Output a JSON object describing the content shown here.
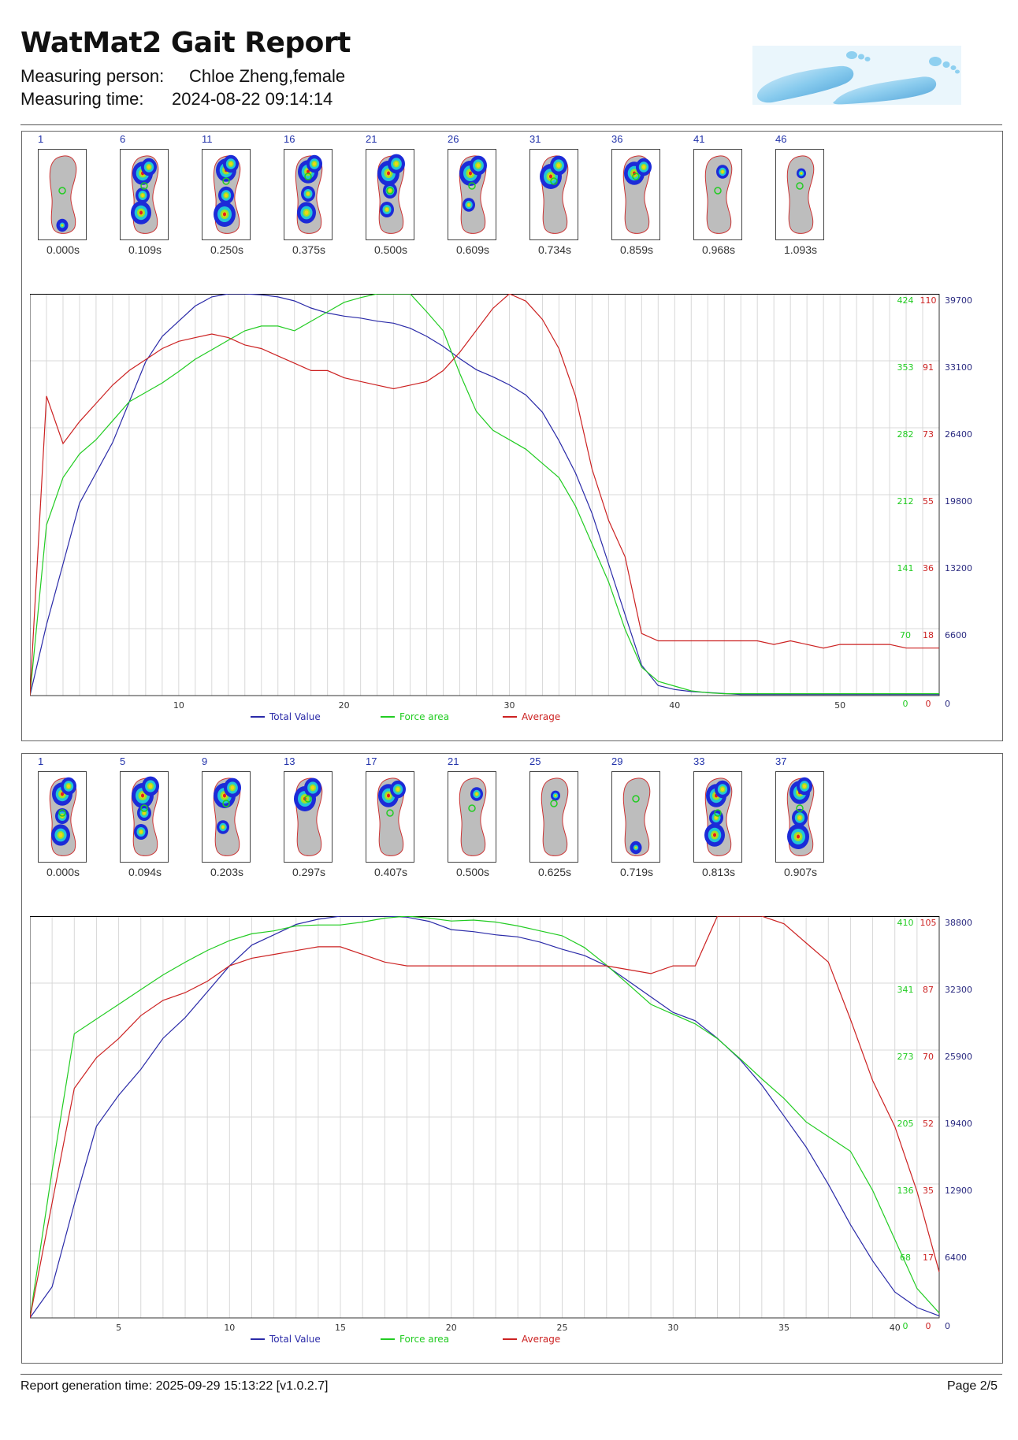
{
  "report": {
    "title": "WatMat2 Gait Report",
    "person_label": "Measuring person:",
    "person_value": "Chloe Zheng,female",
    "time_label": "Measuring time:",
    "time_value": "2024-08-22 09:14:14"
  },
  "footer": {
    "generation": "Report generation time: 2025-09-29 15:13:22 [v1.0.2.7]",
    "page": "Page 2/5"
  },
  "colors": {
    "total_value": "#2a2aa8",
    "force_area": "#22cc22",
    "average": "#cc2222",
    "grid": "#d8d8d8"
  },
  "panels": [
    {
      "frames": [
        {
          "num": "1",
          "time": "0.000s"
        },
        {
          "num": "6",
          "time": "0.109s"
        },
        {
          "num": "11",
          "time": "0.250s"
        },
        {
          "num": "16",
          "time": "0.375s"
        },
        {
          "num": "21",
          "time": "0.500s"
        },
        {
          "num": "26",
          "time": "0.609s"
        },
        {
          "num": "31",
          "time": "0.734s"
        },
        {
          "num": "36",
          "time": "0.859s"
        },
        {
          "num": "41",
          "time": "0.968s"
        },
        {
          "num": "46",
          "time": "1.093s"
        }
      ],
      "chart_data": {
        "type": "line",
        "x_ticks": [
          "10",
          "20",
          "30",
          "40",
          "50"
        ],
        "x_tick_values": [
          10,
          20,
          30,
          40,
          50
        ],
        "xlim": [
          1,
          56
        ],
        "ylim_total": [
          0,
          39700
        ],
        "ylim_force": [
          0,
          424
        ],
        "ylim_avg": [
          0,
          110
        ],
        "y_ticks_force": [
          "0",
          "70",
          "141",
          "212",
          "282",
          "353",
          "424"
        ],
        "y_ticks_avg": [
          "0",
          "18",
          "36",
          "55",
          "73",
          "91",
          "110"
        ],
        "y_ticks_total": [
          "0",
          "6600",
          "13200",
          "19800",
          "26400",
          "33100",
          "39700"
        ],
        "legend": [
          "Total Value",
          "Force area",
          "Average"
        ],
        "series": [
          {
            "name": "Total Value",
            "axis": "total",
            "x": [
              1,
              2,
              3,
              4,
              5,
              6,
              7,
              8,
              9,
              10,
              11,
              12,
              13,
              14,
              15,
              16,
              17,
              18,
              19,
              20,
              21,
              22,
              23,
              24,
              25,
              26,
              27,
              28,
              29,
              30,
              31,
              32,
              33,
              34,
              35,
              36,
              37,
              38,
              39,
              40,
              41,
              42,
              43,
              44,
              45,
              46,
              47,
              48,
              49,
              50,
              51,
              52,
              53,
              54,
              55,
              56
            ],
            "values": [
              0,
              7000,
              13000,
              19000,
              22000,
              25000,
              29000,
              33000,
              35500,
              37000,
              38500,
              39400,
              39700,
              39700,
              39600,
              39400,
              39000,
              38300,
              37800,
              37500,
              37300,
              37000,
              36800,
              36300,
              35500,
              34500,
              33300,
              32200,
              31500,
              30700,
              29700,
              28000,
              25200,
              22000,
              18000,
              13000,
              8000,
              3000,
              1000,
              600,
              400,
              300,
              200,
              100,
              100,
              100,
              100,
              100,
              100,
              100,
              100,
              100,
              100,
              100,
              100,
              100
            ]
          },
          {
            "name": "Force area",
            "axis": "force",
            "x": [
              1,
              2,
              3,
              4,
              5,
              6,
              7,
              8,
              9,
              10,
              11,
              12,
              13,
              14,
              15,
              16,
              17,
              18,
              19,
              20,
              21,
              22,
              23,
              24,
              25,
              26,
              27,
              28,
              29,
              30,
              31,
              32,
              33,
              34,
              35,
              36,
              37,
              38,
              39,
              40,
              41,
              42,
              43,
              44,
              45,
              46,
              47,
              48,
              49,
              50,
              51,
              52,
              53,
              54,
              55,
              56
            ],
            "values": [
              0,
              180,
              230,
              255,
              270,
              290,
              310,
              320,
              330,
              342,
              355,
              365,
              375,
              385,
              390,
              390,
              385,
              395,
              405,
              415,
              420,
              424,
              424,
              424,
              405,
              385,
              340,
              300,
              280,
              270,
              260,
              245,
              230,
              200,
              160,
              120,
              70,
              30,
              15,
              10,
              5,
              3,
              2,
              2,
              2,
              2,
              2,
              2,
              2,
              2,
              2,
              2,
              2,
              2,
              2,
              2
            ]
          },
          {
            "name": "Average",
            "axis": "avg",
            "x": [
              1,
              2,
              3,
              4,
              5,
              6,
              7,
              8,
              9,
              10,
              11,
              12,
              13,
              14,
              15,
              16,
              17,
              18,
              19,
              20,
              21,
              22,
              23,
              24,
              25,
              26,
              27,
              28,
              29,
              30,
              31,
              32,
              33,
              34,
              35,
              36,
              37,
              38,
              39,
              40,
              41,
              42,
              43,
              44,
              45,
              46,
              47,
              48,
              49,
              50,
              51,
              52,
              53,
              54,
              55,
              56
            ],
            "values": [
              0,
              82,
              69,
              75,
              80,
              85,
              89,
              92,
              95,
              97,
              98,
              99,
              98,
              96,
              95,
              93,
              91,
              89,
              89,
              87,
              86,
              85,
              84,
              85,
              86,
              89,
              94,
              100,
              106,
              110,
              108,
              103,
              95,
              82,
              62,
              48,
              38,
              17,
              15,
              15,
              15,
              15,
              15,
              15,
              15,
              14,
              15,
              14,
              13,
              14,
              14,
              14,
              14,
              13,
              13,
              13
            ]
          }
        ]
      }
    },
    {
      "frames": [
        {
          "num": "1",
          "time": "0.000s"
        },
        {
          "num": "5",
          "time": "0.094s"
        },
        {
          "num": "9",
          "time": "0.203s"
        },
        {
          "num": "13",
          "time": "0.297s"
        },
        {
          "num": "17",
          "time": "0.407s"
        },
        {
          "num": "21",
          "time": "0.500s"
        },
        {
          "num": "25",
          "time": "0.625s"
        },
        {
          "num": "29",
          "time": "0.719s"
        },
        {
          "num": "33",
          "time": "0.813s"
        },
        {
          "num": "37",
          "time": "0.907s"
        }
      ],
      "chart_data": {
        "type": "line",
        "x_ticks": [
          "5",
          "10",
          "15",
          "20",
          "25",
          "30",
          "35",
          "40"
        ],
        "x_tick_values": [
          5,
          10,
          15,
          20,
          25,
          30,
          35,
          40
        ],
        "xlim": [
          1,
          42
        ],
        "ylim_total": [
          0,
          38800
        ],
        "ylim_force": [
          0,
          410
        ],
        "ylim_avg": [
          0,
          105
        ],
        "y_ticks_force": [
          "0",
          "68",
          "136",
          "205",
          "273",
          "341",
          "410"
        ],
        "y_ticks_avg": [
          "0",
          "17",
          "35",
          "52",
          "70",
          "87",
          "105"
        ],
        "y_ticks_total": [
          "0",
          "6400",
          "12900",
          "19400",
          "25900",
          "32300",
          "38800"
        ],
        "legend": [
          "Total Value",
          "Force area",
          "Average"
        ],
        "series": [
          {
            "name": "Total Value",
            "axis": "total",
            "x": [
              1,
              2,
              3,
              4,
              5,
              6,
              7,
              8,
              9,
              10,
              11,
              12,
              13,
              14,
              15,
              16,
              17,
              18,
              19,
              20,
              21,
              22,
              23,
              24,
              25,
              26,
              27,
              28,
              29,
              30,
              31,
              32,
              33,
              34,
              35,
              36,
              37,
              38,
              39,
              40,
              41,
              42
            ],
            "values": [
              0,
              3000,
              11000,
              18500,
              21500,
              24000,
              27000,
              29000,
              31500,
              34000,
              36000,
              37000,
              38000,
              38500,
              38800,
              38800,
              38800,
              38700,
              38300,
              37500,
              37300,
              37000,
              36800,
              36300,
              35600,
              35000,
              34000,
              32500,
              31000,
              29500,
              28700,
              27000,
              25000,
              22500,
              19500,
              16500,
              12900,
              9000,
              5500,
              2500,
              1000,
              200
            ]
          },
          {
            "name": "Force area",
            "axis": "force",
            "x": [
              1,
              2,
              3,
              4,
              5,
              6,
              7,
              8,
              9,
              10,
              11,
              12,
              13,
              14,
              15,
              16,
              17,
              18,
              19,
              20,
              21,
              22,
              23,
              24,
              25,
              26,
              27,
              28,
              29,
              30,
              31,
              32,
              33,
              34,
              35,
              36,
              37,
              38,
              39,
              40,
              41,
              42
            ],
            "values": [
              0,
              150,
              290,
              305,
              320,
              335,
              350,
              363,
              375,
              385,
              392,
              395,
              400,
              401,
              401,
              404,
              408,
              410,
              408,
              405,
              406,
              404,
              400,
              395,
              390,
              378,
              360,
              340,
              320,
              310,
              300,
              285,
              265,
              244,
              224,
              200,
              185,
              170,
              130,
              80,
              30,
              5
            ]
          },
          {
            "name": "Average",
            "axis": "avg",
            "x": [
              1,
              2,
              3,
              4,
              5,
              6,
              7,
              8,
              9,
              10,
              11,
              12,
              13,
              14,
              15,
              16,
              17,
              18,
              19,
              20,
              21,
              22,
              23,
              24,
              25,
              26,
              27,
              28,
              29,
              30,
              31,
              32,
              33,
              34,
              35,
              36,
              37,
              38,
              39,
              40,
              41,
              42
            ],
            "values": [
              0,
              30,
              60,
              68,
              73,
              79,
              83,
              85,
              88,
              92,
              94,
              95,
              96,
              97,
              97,
              95,
              93,
              92,
              92,
              92,
              92,
              92,
              92,
              92,
              92,
              92,
              92,
              91,
              90,
              92,
              92,
              105,
              105,
              105,
              103,
              98,
              93,
              78,
              62,
              50,
              33,
              12
            ]
          }
        ]
      }
    }
  ]
}
